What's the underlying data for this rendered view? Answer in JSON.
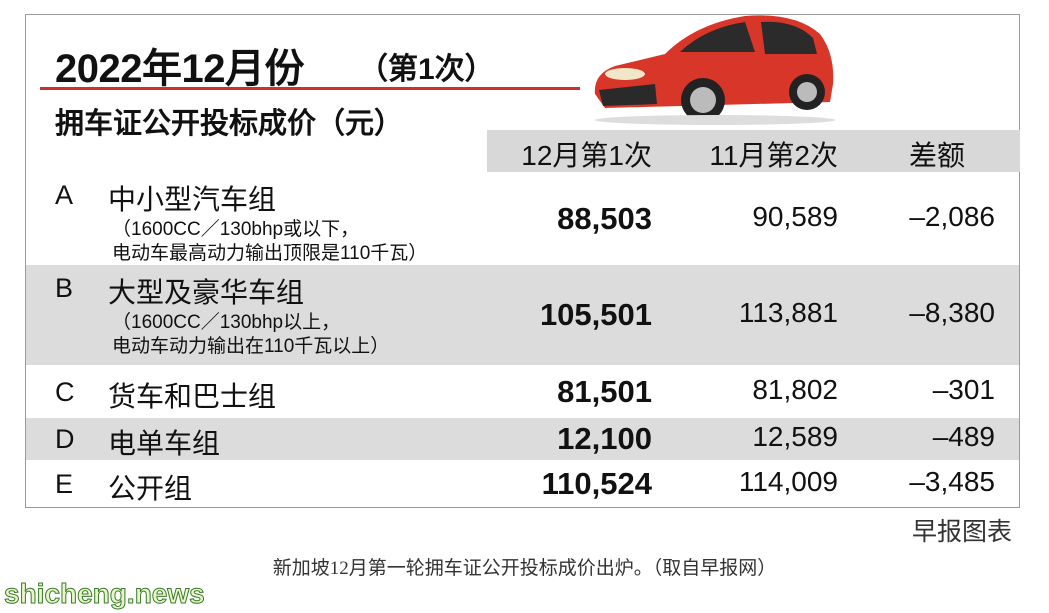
{
  "header": {
    "title": "2022年12月份",
    "round": "（第1次）",
    "subtitle": "拥车证公开投标成价（元）"
  },
  "table": {
    "columns": [
      "12月第1次",
      "11月第2次",
      "差额"
    ],
    "rows": [
      {
        "code": "A",
        "name": "中小型汽车组",
        "note": [
          "（1600CC／130bhp或以下，",
          "电动车最高动力输出顶限是110千瓦）"
        ],
        "values": [
          "88,503",
          "90,589",
          "–2,086"
        ]
      },
      {
        "code": "B",
        "name": "大型及豪华车组",
        "note": [
          "（1600CC／130bhp以上，",
          "电动车动力输出在110千瓦以上）"
        ],
        "values": [
          "105,501",
          "113,881",
          "–8,380"
        ]
      },
      {
        "code": "C",
        "name": "货车和巴士组",
        "values": [
          "81,501",
          "81,802",
          "–301"
        ]
      },
      {
        "code": "D",
        "name": "电单车组",
        "values": [
          "12,100",
          "12,589",
          "–489"
        ]
      },
      {
        "code": "E",
        "name": "公开组",
        "values": [
          "110,524",
          "114,009",
          "–3,485"
        ]
      }
    ]
  },
  "source": "早报图表",
  "caption": "新加坡12月第一轮拥车证公开投标成价出炉。（取自早报网）",
  "watermark": "shicheng.news"
}
